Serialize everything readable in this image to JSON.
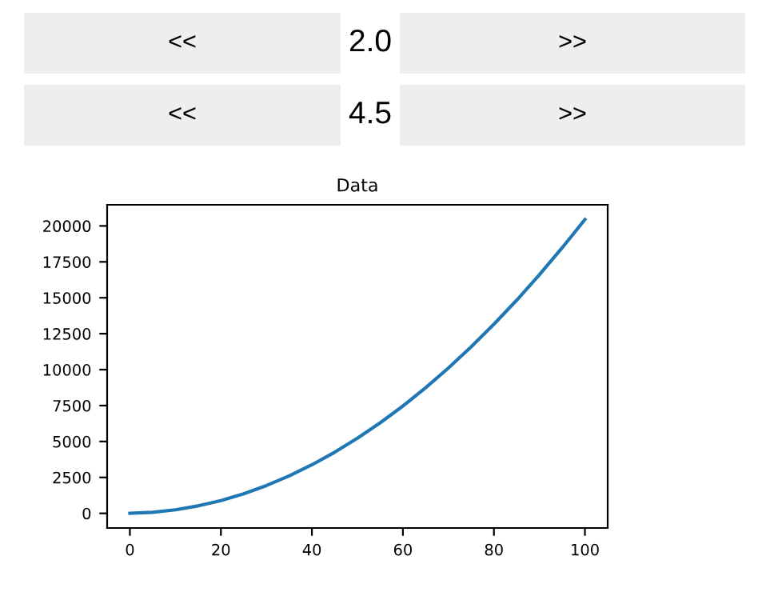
{
  "chart_data": {
    "type": "line",
    "title": "Data",
    "annotations": [
      "<<",
      "2.0",
      ">>",
      "<<",
      "4.5",
      ">>"
    ],
    "x": [
      0,
      5,
      10,
      15,
      20,
      25,
      30,
      35,
      40,
      45,
      50,
      55,
      60,
      65,
      70,
      75,
      80,
      85,
      90,
      95,
      100
    ],
    "series": [
      {
        "color": "#1f77b4",
        "values": [
          0,
          70,
          245,
          520,
          890,
          1360,
          1935,
          2610,
          3380,
          4250,
          5225,
          6300,
          7470,
          8740,
          10115,
          11590,
          13160,
          14830,
          16605,
          18480,
          20450
        ]
      }
    ],
    "xlim": [
      -5,
      105
    ],
    "ylim": [
      -1020,
      21470
    ],
    "xticks": [
      0,
      20,
      40,
      60,
      80,
      100
    ],
    "yticks": [
      0,
      2500,
      5000,
      7500,
      10000,
      12500,
      15000,
      17500,
      20000
    ],
    "grid": false,
    "legend": false
  }
}
